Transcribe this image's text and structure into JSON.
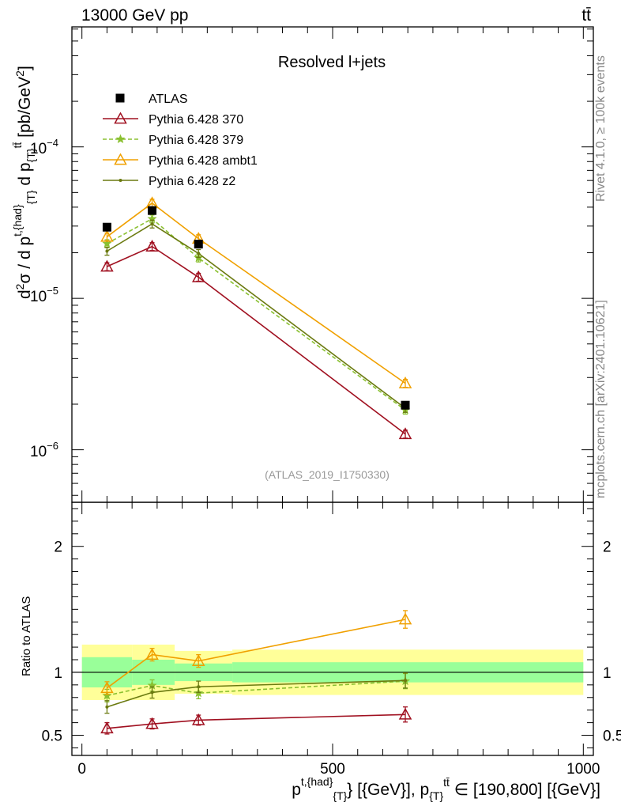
{
  "header": {
    "energy_label": "13000 GeV pp",
    "process_label": "tt̄"
  },
  "side_text": {
    "rivet": "Rivet 4.1.0, ≥ 100k events",
    "mcplots": "mcplots.cern.ch [arXiv:2401.10621]"
  },
  "chart_data": {
    "type": "line",
    "title": "Resolved l+jets",
    "analysis_id": "(ATLAS_2019_I1750330)",
    "xlabel": "p^{t,{had}}_{T} [{GeV}], p_{T}^{tt̄} ∈ [190,800] [{GeV}]",
    "ylabel": "d²σ / d p^{t,{had}}_{T} d p_{T}^{tt̄} [pb/GeV²]",
    "ratio_ylabel": "Ratio to ATLAS",
    "xlim": [
      -20,
      1020
    ],
    "ylim": [
      4.5e-07,
      0.00062
    ],
    "ratio_ylim": [
      0.34,
      2.35
    ],
    "yscale": "log",
    "x_ticks": [
      "0",
      "500",
      "1000"
    ],
    "y_ticks": [
      "10^-6",
      "10^-5",
      "10^-4"
    ],
    "ratio_y_ticks": [
      "0.5",
      "1",
      "2"
    ],
    "x": [
      50,
      140,
      232.5,
      645
    ],
    "bin_edges": [
      0,
      100,
      185,
      300,
      1000
    ],
    "data": {
      "name": "ATLAS",
      "color": "#000000",
      "values": [
        2.95e-05,
        3.8e-05,
        2.28e-05,
        1.97e-06
      ],
      "band_inner": [
        0.12,
        0.1,
        0.07,
        0.08
      ],
      "band_outer": [
        0.22,
        0.22,
        0.17,
        0.18
      ]
    },
    "series": [
      {
        "name": "Pythia 6.428 370",
        "color": "#a01020",
        "marker": "triangle-open",
        "dashed": false,
        "values": [
          1.62e-05,
          2.2e-05,
          1.38e-05,
          1.27e-06
        ],
        "ratio": [
          0.555,
          0.59,
          0.62,
          0.665
        ],
        "ratio_err": [
          0.045,
          0.04,
          0.04,
          0.06
        ]
      },
      {
        "name": "Pythia 6.428 379",
        "color": "#8ac030",
        "marker": "star",
        "dashed": true,
        "values": [
          2.3e-05,
          3.35e-05,
          1.85e-05,
          1.83e-06
        ],
        "ratio": [
          0.815,
          0.895,
          0.835,
          0.93
        ],
        "ratio_err": [
          0.05,
          0.045,
          0.045,
          0.06
        ]
      },
      {
        "name": "Pythia 6.428 ambt1",
        "color": "#f0a000",
        "marker": "triangle-open",
        "dashed": false,
        "values": [
          2.55e-05,
          4.25e-05,
          2.48e-05,
          2.75e-06
        ],
        "ratio": [
          0.875,
          1.14,
          1.09,
          1.42
        ],
        "ratio_err": [
          0.05,
          0.05,
          0.05,
          0.07
        ]
      },
      {
        "name": "Pythia 6.428 z2",
        "color": "#6b7a10",
        "marker": "dot",
        "dashed": false,
        "values": [
          2.05e-05,
          3.1e-05,
          1.98e-05,
          1.88e-06
        ],
        "ratio": [
          0.725,
          0.84,
          0.885,
          0.935
        ],
        "ratio_err": [
          0.05,
          0.045,
          0.045,
          0.06
        ]
      }
    ]
  }
}
